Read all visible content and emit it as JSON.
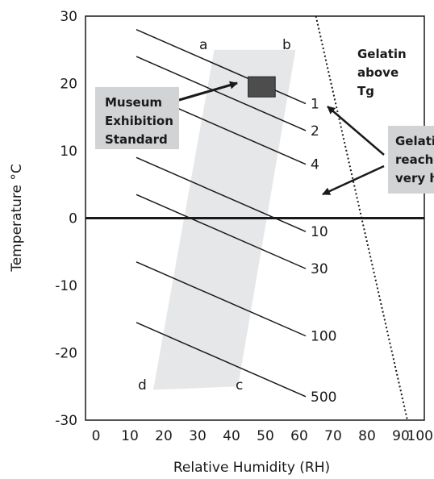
{
  "chart_data": {
    "type": "line",
    "xlabel": "Relative Humidity (RH)",
    "ylabel": "Temperature °C",
    "xlim": [
      0,
      100
    ],
    "ylim": [
      -30,
      30
    ],
    "x_ticks": [
      "0",
      "10",
      "20",
      "30",
      "40",
      "50",
      "60",
      "70",
      "80",
      "90",
      "100"
    ],
    "y_ticks": [
      "30",
      "20",
      "10",
      "0",
      "-10",
      "-20",
      "-30"
    ],
    "grid": false,
    "series": [
      {
        "name": "1",
        "x": [
          15,
          65
        ],
        "y": [
          28,
          17
        ]
      },
      {
        "name": "2",
        "x": [
          15,
          65
        ],
        "y": [
          24,
          13
        ]
      },
      {
        "name": "4",
        "x": [
          15,
          65
        ],
        "y": [
          19,
          8
        ]
      },
      {
        "name": "10",
        "x": [
          15,
          65
        ],
        "y": [
          9,
          -2
        ]
      },
      {
        "name": "30",
        "x": [
          15,
          65
        ],
        "y": [
          3.5,
          -7.5
        ]
      },
      {
        "name": "100",
        "x": [
          15,
          65
        ],
        "y": [
          -6.5,
          -17.5
        ]
      },
      {
        "name": "500",
        "x": [
          15,
          65
        ],
        "y": [
          -15.5,
          -26.5
        ]
      }
    ],
    "dotted_line": {
      "x": [
        68,
        95
      ],
      "y": [
        30,
        -30
      ]
    },
    "zero_line": {
      "y": 0
    },
    "shaded_region": {
      "corners": [
        {
          "label": "a",
          "x": 38,
          "y": 25
        },
        {
          "label": "b",
          "x": 62,
          "y": 25
        },
        {
          "label": "c",
          "x": 45,
          "y": -25
        },
        {
          "label": "d",
          "x": 20,
          "y": -25.5
        }
      ]
    },
    "standard_box": {
      "x": [
        48,
        56
      ],
      "y": [
        18,
        21
      ]
    },
    "annotations": [
      {
        "lines": [
          "Museum",
          "Exhibition",
          "Standard"
        ]
      },
      {
        "lines": [
          "Gelatin",
          "above",
          "Tg"
        ]
      },
      {
        "lines": [
          "Gelatin",
          "reaches",
          "very high"
        ]
      }
    ]
  }
}
